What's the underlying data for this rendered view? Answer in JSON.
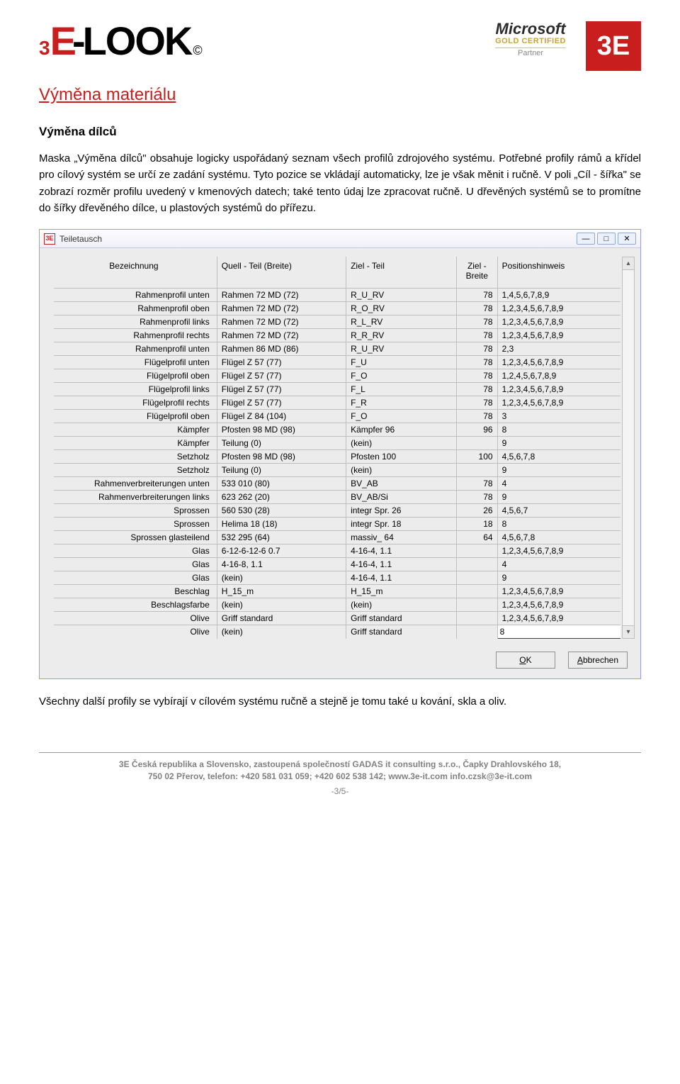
{
  "header": {
    "logo_3": "3",
    "logo_e": "E",
    "logo_dash": "-",
    "logo_look": "LOOK",
    "logo_copy": "©",
    "ms_name": "Microsoft",
    "ms_gold": "GOLD CERTIFIED",
    "ms_partner": "Partner",
    "box3e": "3E"
  },
  "headings": {
    "main": "Výměna materiálu",
    "sub": "Výměna dílců"
  },
  "paragraphs": {
    "p1": "Maska „Výměna dílců\" obsahuje logicky uspořádaný seznam všech profilů zdrojového systému. Potřebné profily rámů a křídel pro cílový systém se určí ze zadání systému. Tyto pozice se vkládají automaticky, lze je však měnit i ručně. V poli „Cíl - šířka\" se zobrazí rozměr profilu uvedený v kmenových datech; také tento údaj lze zpracovat ručně. U dřevěných systémů se to promítne do šířky dřevěného dílce, u plastových systémů do přířezu.",
    "p2": "Všechny další profily se vybírají v cílovém systému ručně a stejně je tomu také u kování, skla a oliv."
  },
  "dialog": {
    "title": "Teiletausch",
    "columns": {
      "c1": "Bezeichnung",
      "c2": "Quell - Teil (Breite)",
      "c3": "Ziel - Teil",
      "c4": "Ziel - Breite",
      "c5": "Positionshinweis"
    },
    "rows": [
      {
        "c1": "Rahmenprofil unten",
        "c2": "Rahmen 72 MD (72)",
        "c3": "R_U_RV",
        "c4": "78",
        "c5": "1,4,5,6,7,8,9"
      },
      {
        "c1": "Rahmenprofil oben",
        "c2": "Rahmen 72 MD (72)",
        "c3": "R_O_RV",
        "c4": "78",
        "c5": "1,2,3,4,5,6,7,8,9"
      },
      {
        "c1": "Rahmenprofil links",
        "c2": "Rahmen 72 MD (72)",
        "c3": "R_L_RV",
        "c4": "78",
        "c5": "1,2,3,4,5,6,7,8,9"
      },
      {
        "c1": "Rahmenprofil rechts",
        "c2": "Rahmen 72 MD (72)",
        "c3": "R_R_RV",
        "c4": "78",
        "c5": "1,2,3,4,5,6,7,8,9"
      },
      {
        "c1": "Rahmenprofil unten",
        "c2": "Rahmen 86 MD (86)",
        "c3": "R_U_RV",
        "c4": "78",
        "c5": "2,3"
      },
      {
        "c1": "Flügelprofil unten",
        "c2": "Flügel Z 57 (77)",
        "c3": "F_U",
        "c4": "78",
        "c5": "1,2,3,4,5,6,7,8,9"
      },
      {
        "c1": "Flügelprofil oben",
        "c2": "Flügel Z 57 (77)",
        "c3": "F_O",
        "c4": "78",
        "c5": "1,2,4,5,6,7,8,9"
      },
      {
        "c1": "Flügelprofil links",
        "c2": "Flügel Z 57 (77)",
        "c3": "F_L",
        "c4": "78",
        "c5": "1,2,3,4,5,6,7,8,9"
      },
      {
        "c1": "Flügelprofil rechts",
        "c2": "Flügel Z 57 (77)",
        "c3": "F_R",
        "c4": "78",
        "c5": "1,2,3,4,5,6,7,8,9"
      },
      {
        "c1": "Flügelprofil oben",
        "c2": "Flügel Z 84 (104)",
        "c3": "F_O",
        "c4": "78",
        "c5": "3"
      },
      {
        "c1": "Kämpfer",
        "c2": "Pfosten 98 MD (98)",
        "c3": "Kämpfer 96",
        "c4": "96",
        "c5": "8"
      },
      {
        "c1": "Kämpfer",
        "c2": "Teilung (0)",
        "c3": "(kein)",
        "c4": "",
        "c5": "9"
      },
      {
        "c1": "Setzholz",
        "c2": "Pfosten 98 MD (98)",
        "c3": "Pfosten 100",
        "c4": "100",
        "c5": "4,5,6,7,8"
      },
      {
        "c1": "Setzholz",
        "c2": "Teilung (0)",
        "c3": "(kein)",
        "c4": "",
        "c5": "9"
      },
      {
        "c1": "Rahmenverbreiterungen unten",
        "c2": "533 010 (80)",
        "c3": "BV_AB",
        "c4": "78",
        "c5": "4"
      },
      {
        "c1": "Rahmenverbreiterungen links",
        "c2": "623 262 (20)",
        "c3": "BV_AB/Si",
        "c4": "78",
        "c5": "9"
      },
      {
        "c1": "Sprossen",
        "c2": "560 530 (28)",
        "c3": "integr Spr. 26",
        "c4": "26",
        "c5": "4,5,6,7"
      },
      {
        "c1": "Sprossen",
        "c2": "Helima 18 (18)",
        "c3": "integr Spr. 18",
        "c4": "18",
        "c5": "8"
      },
      {
        "c1": "Sprossen glasteilend",
        "c2": "532 295 (64)",
        "c3": "massiv_ 64",
        "c4": "64",
        "c5": "4,5,6,7,8"
      },
      {
        "c1": "Glas",
        "c2": "6-12-6-12-6 0.7",
        "c3": "4-16-4, 1.1",
        "c4": "",
        "c5": "1,2,3,4,5,6,7,8,9"
      },
      {
        "c1": "Glas",
        "c2": "4-16-8, 1.1",
        "c3": "4-16-4, 1.1",
        "c4": "",
        "c5": "4"
      },
      {
        "c1": "Glas",
        "c2": "(kein)",
        "c3": "4-16-4, 1.1",
        "c4": "",
        "c5": "9"
      },
      {
        "c1": "Beschlag",
        "c2": "H_15_m",
        "c3": "H_15_m",
        "c4": "",
        "c5": "1,2,3,4,5,6,7,8,9"
      },
      {
        "c1": "Beschlagsfarbe",
        "c2": "(kein)",
        "c3": "(kein)",
        "c4": "",
        "c5": "1,2,3,4,5,6,7,8,9"
      },
      {
        "c1": "Olive",
        "c2": "Griff standard",
        "c3": "Griff standard",
        "c4": "",
        "c5": "1,2,3,4,5,6,7,8,9"
      },
      {
        "c1": "Olive",
        "c2": "(kein)",
        "c3": "Griff standard",
        "c4": "",
        "c5": "8",
        "editing": true
      }
    ],
    "buttons": {
      "ok": "OK",
      "cancel": "Abbrechen"
    }
  },
  "footer": {
    "line1": "3E Česká republika a Slovensko, zastoupená společností GADAS it consulting s.r.o., Čapky Drahlovského 18,",
    "line2": "750 02  Přerov, telefon: +420 581 031 059; +420 602 538 142; www.3e-it.com  info.czsk@3e-it.com",
    "page": "-3/5-"
  }
}
